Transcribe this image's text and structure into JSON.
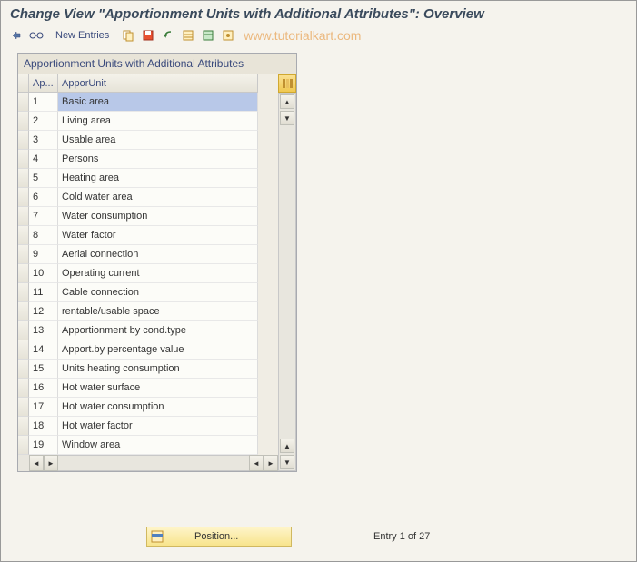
{
  "title": "Change View \"Apportionment Units with Additional Attributes\": Overview",
  "toolbar": {
    "new_entries_label": "New Entries"
  },
  "watermark": "www.tutorialkart.com",
  "panel": {
    "title": "Apportionment Units with Additional Attributes",
    "columns": {
      "col1": "Ap...",
      "col2": "ApporUnit"
    }
  },
  "rows": [
    {
      "n": "1",
      "label": "Basic area",
      "selected": true
    },
    {
      "n": "2",
      "label": "Living area"
    },
    {
      "n": "3",
      "label": "Usable area"
    },
    {
      "n": "4",
      "label": "Persons"
    },
    {
      "n": "5",
      "label": "Heating area"
    },
    {
      "n": "6",
      "label": "Cold water area"
    },
    {
      "n": "7",
      "label": "Water consumption"
    },
    {
      "n": "8",
      "label": "Water factor"
    },
    {
      "n": "9",
      "label": "Aerial connection"
    },
    {
      "n": "10",
      "label": "Operating current"
    },
    {
      "n": "11",
      "label": "Cable connection"
    },
    {
      "n": "12",
      "label": "rentable/usable space"
    },
    {
      "n": "13",
      "label": "Apportionment by cond.type"
    },
    {
      "n": "14",
      "label": "Apport.by percentage value"
    },
    {
      "n": "15",
      "label": "Units heating consumption"
    },
    {
      "n": "16",
      "label": "Hot water surface"
    },
    {
      "n": "17",
      "label": "Hot water consumption"
    },
    {
      "n": "18",
      "label": "Hot water factor"
    },
    {
      "n": "19",
      "label": "Window area"
    }
  ],
  "footer": {
    "position_label": "Position...",
    "entry_text": "Entry 1 of 27"
  },
  "colors": {
    "accent_yellow": "#f8e48c",
    "selection": "#b8c8e8",
    "text_blue": "#3a4a7c"
  }
}
